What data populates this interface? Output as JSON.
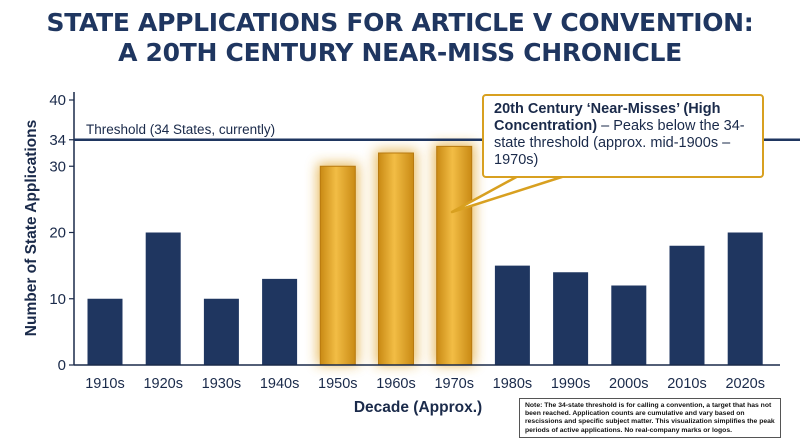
{
  "title_line1": "STATE APPLICATIONS FOR ARTICLE V CONVENTION:",
  "title_line2": "A 20TH CENTURY NEAR-MISS CHRONICLE",
  "threshold_label": "Threshold (34 States, currently)",
  "callout": {
    "bold": "20th Century ‘Near-Misses’ (High Concentration)",
    "text": " – Peaks below the 34-state threshold (approx. mid-1900s – 1970s)"
  },
  "note": "Note: The 34-state threshold is for calling a convention, a target that has not been reached. Application counts are cumulative and vary based on rescissions and specific subject matter. This visualization simplifies the peak periods of active applications. No real-company marks or logos.",
  "colors": {
    "bar": "#1f3660",
    "highlight": "#e0a52a",
    "threshold": "#1f3660"
  },
  "chart_data": {
    "type": "bar",
    "categories": [
      "1910s",
      "1920s",
      "1930s",
      "1940s",
      "1950s",
      "1960s",
      "1970s",
      "1980s",
      "1990s",
      "2000s",
      "2010s",
      "2020s"
    ],
    "values": [
      10,
      20,
      10,
      13,
      30,
      32,
      33,
      15,
      14,
      12,
      18,
      20
    ],
    "highlighted": [
      "1950s",
      "1960s",
      "1970s"
    ],
    "threshold": 34,
    "xlabel": "Decade (Approx.)",
    "ylabel": "Number of State Applications",
    "yticks": [
      0,
      10,
      20,
      30,
      34,
      40
    ],
    "ylim": [
      0,
      40
    ],
    "grid": false
  }
}
